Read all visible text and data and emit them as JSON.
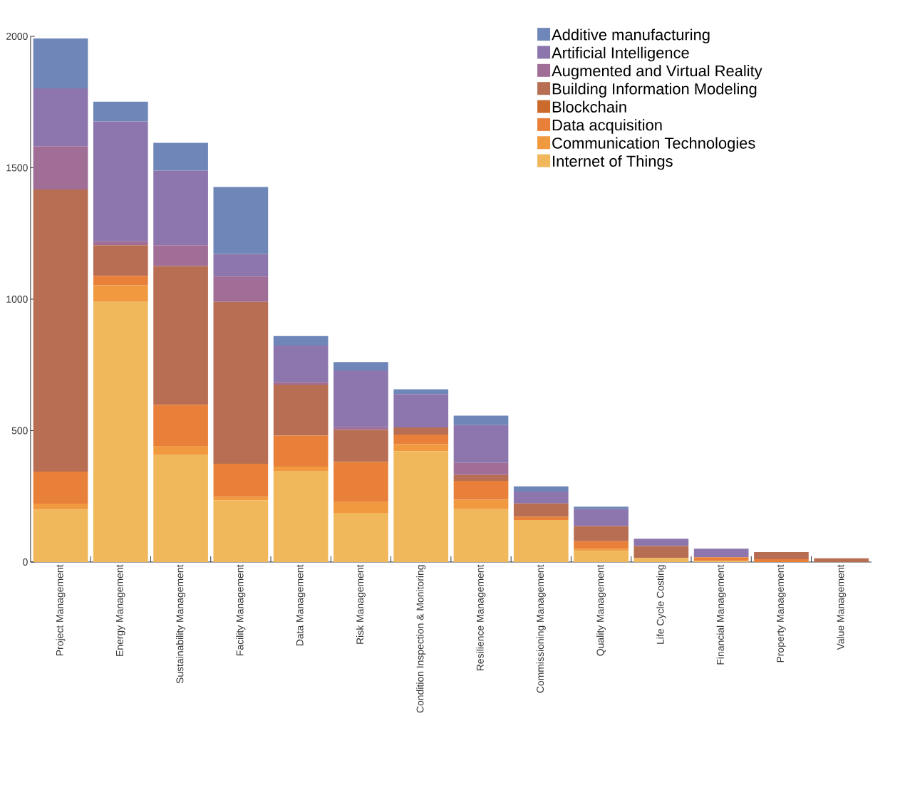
{
  "chart_data": {
    "type": "bar",
    "stacked": true,
    "categories": [
      "Project Management",
      "Energy Management",
      "Sustainability Management",
      "Facility Management",
      "Data Management",
      "Risk Management",
      "Condition Inspection & Monitoring",
      "Resilience Management",
      "Commissioning Management",
      "Quality Management",
      "Life Cycle Costing",
      "Financial Management",
      "Property Management",
      "Value Management"
    ],
    "series": [
      {
        "name": "Internet of Things",
        "color": "#f0b85a",
        "values": [
          200,
          990,
          407,
          235,
          345,
          187,
          422,
          201,
          160,
          42,
          15,
          4,
          0,
          0
        ]
      },
      {
        "name": "Communication Technologies",
        "color": "#f0993e",
        "values": [
          22,
          63,
          33,
          13,
          18,
          41,
          27,
          36,
          0,
          9,
          0,
          0,
          0,
          0
        ]
      },
      {
        "name": "Data acquisition",
        "color": "#e8803a",
        "values": [
          122,
          36,
          158,
          126,
          118,
          153,
          36,
          72,
          13,
          28,
          0,
          14,
          11,
          0
        ]
      },
      {
        "name": "Blockchain",
        "color": "#cc6a2e",
        "values": [
          0,
          0,
          0,
          0,
          0,
          0,
          0,
          0,
          0,
          0,
          0,
          0,
          0,
          0
        ]
      },
      {
        "name": "Building Information Modeling",
        "color": "#b86e52",
        "values": [
          1073,
          116,
          528,
          616,
          194,
          122,
          27,
          22,
          50,
          58,
          46,
          0,
          27,
          14
        ]
      },
      {
        "name": "Augmented and Virtual Reality",
        "color": "#a06e96",
        "values": [
          165,
          15,
          79,
          96,
          10,
          10,
          0,
          46,
          0,
          0,
          0,
          0,
          0,
          0
        ]
      },
      {
        "name": "Artificial Intelligence",
        "color": "#8c76ad",
        "values": [
          220,
          456,
          284,
          86,
          139,
          216,
          127,
          144,
          45,
          64,
          28,
          33,
          0,
          0
        ]
      },
      {
        "name": "Additive manufacturing",
        "color": "#6f86b8",
        "values": [
          190,
          75,
          106,
          255,
          36,
          32,
          18,
          36,
          20,
          10,
          0,
          0,
          0,
          0
        ]
      }
    ],
    "ylim": [
      0,
      2000
    ],
    "yticks": [
      0,
      500,
      1000,
      1500,
      2000
    ],
    "legend": "top right"
  }
}
